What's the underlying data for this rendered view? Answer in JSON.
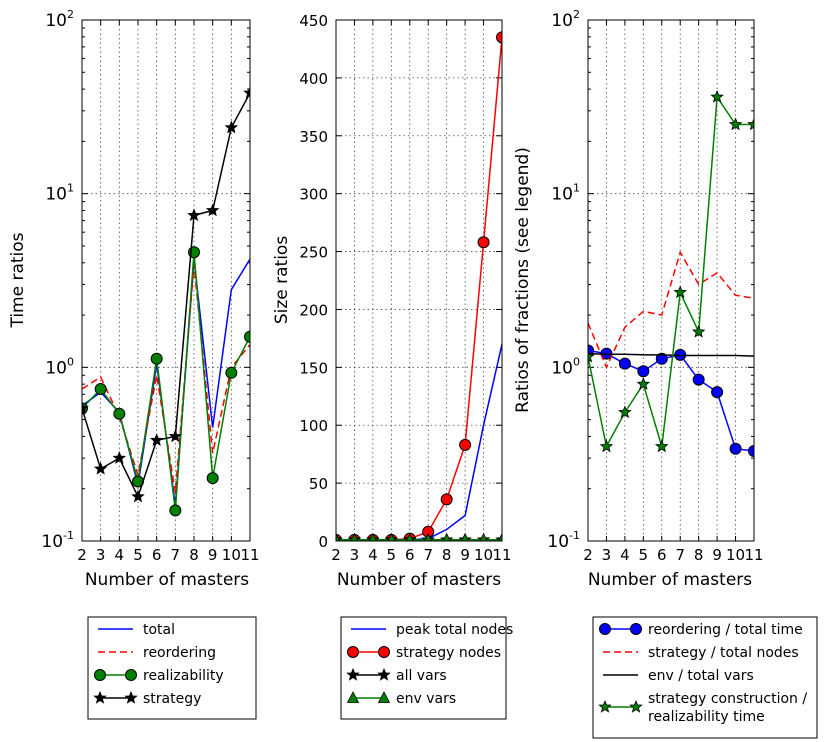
{
  "chart_data": [
    {
      "type": "line",
      "yscale": "log",
      "xlabel": "Number of masters",
      "ylabel": "Time ratios",
      "x": [
        2,
        3,
        4,
        5,
        6,
        7,
        8,
        9,
        10,
        11
      ],
      "xticks": [
        "2",
        "3",
        "4",
        "5",
        "6",
        "7",
        "8",
        "9",
        "10",
        "11"
      ],
      "ylim": [
        0.1,
        100
      ],
      "yticks": [
        {
          "value": 0.1,
          "base": "10",
          "exp": "-1"
        },
        {
          "value": 1,
          "base": "10",
          "exp": "0"
        },
        {
          "value": 10,
          "base": "10",
          "exp": "1"
        },
        {
          "value": 100,
          "base": "10",
          "exp": "2"
        }
      ],
      "series": [
        {
          "name": "total",
          "color": "#0000ff",
          "dash": "",
          "marker": "none",
          "values": [
            0.6,
            0.72,
            0.55,
            0.21,
            1.05,
            0.16,
            4.2,
            0.45,
            2.8,
            4.2
          ]
        },
        {
          "name": "reordering",
          "color": "#ff0000",
          "dash": "7 4",
          "marker": "none",
          "values": [
            0.75,
            0.88,
            0.52,
            0.24,
            0.9,
            0.19,
            3.9,
            0.32,
            1.0,
            1.35
          ]
        },
        {
          "name": "realizability",
          "color": "#008000",
          "dash": "",
          "marker": "circle",
          "markerColor": "#008000",
          "values": [
            0.58,
            0.75,
            0.54,
            0.22,
            1.12,
            0.15,
            4.6,
            0.23,
            0.93,
            1.5
          ]
        },
        {
          "name": "strategy",
          "color": "#000000",
          "dash": "",
          "marker": "star",
          "markerColor": "#000000",
          "values": [
            0.58,
            0.26,
            0.3,
            0.18,
            0.38,
            0.4,
            7.5,
            8.0,
            24,
            38
          ]
        }
      ],
      "legend": [
        "total",
        "reordering",
        "realizability",
        "strategy"
      ]
    },
    {
      "type": "line",
      "yscale": "linear",
      "xlabel": "Number of masters",
      "ylabel": "Size ratios",
      "x": [
        2,
        3,
        4,
        5,
        6,
        7,
        8,
        9,
        10,
        11
      ],
      "xticks": [
        "2",
        "3",
        "4",
        "5",
        "6",
        "7",
        "8",
        "9",
        "10",
        "11"
      ],
      "ylim": [
        0,
        450
      ],
      "yticks": [
        {
          "value": 0,
          "label": "0"
        },
        {
          "value": 50,
          "label": "50"
        },
        {
          "value": 100,
          "label": "100"
        },
        {
          "value": 150,
          "label": "150"
        },
        {
          "value": 200,
          "label": "200"
        },
        {
          "value": 250,
          "label": "250"
        },
        {
          "value": 300,
          "label": "300"
        },
        {
          "value": 350,
          "label": "350"
        },
        {
          "value": 400,
          "label": "400"
        },
        {
          "value": 450,
          "label": "450"
        }
      ],
      "series": [
        {
          "name": "peak total nodes",
          "color": "#0000ff",
          "dash": "",
          "marker": "none",
          "values": [
            1,
            1,
            1,
            1,
            1,
            2,
            10,
            22,
            100,
            170
          ]
        },
        {
          "name": "strategy nodes",
          "color": "#ff0000",
          "dash": "",
          "marker": "circle",
          "markerColor": "#ff0000",
          "values": [
            1,
            1,
            1,
            1,
            2,
            8,
            36,
            83,
            258,
            435
          ]
        },
        {
          "name": "all vars",
          "color": "#000000",
          "dash": "",
          "marker": "star",
          "markerColor": "#000000",
          "values": [
            1,
            1,
            1,
            1,
            1,
            1,
            1,
            1,
            1,
            1
          ]
        },
        {
          "name": "env vars",
          "color": "#008000",
          "dash": "",
          "marker": "triangle",
          "markerColor": "#008000",
          "values": [
            1,
            1,
            1,
            1,
            1,
            1,
            1,
            1,
            1,
            1
          ]
        }
      ],
      "legend": [
        "peak total nodes",
        "strategy nodes",
        "all vars",
        "env vars"
      ]
    },
    {
      "type": "line",
      "yscale": "log",
      "xlabel": "Number of masters",
      "ylabel": "Ratios of fractions (see legend)",
      "x": [
        2,
        3,
        4,
        5,
        6,
        7,
        8,
        9,
        10,
        11
      ],
      "xticks": [
        "2",
        "3",
        "4",
        "5",
        "6",
        "7",
        "8",
        "9",
        "10",
        "11"
      ],
      "ylim": [
        0.1,
        100
      ],
      "yticks": [
        {
          "value": 0.1,
          "base": "10",
          "exp": "-1"
        },
        {
          "value": 1,
          "base": "10",
          "exp": "0"
        },
        {
          "value": 10,
          "base": "10",
          "exp": "1"
        },
        {
          "value": 100,
          "base": "10",
          "exp": "2"
        }
      ],
      "series": [
        {
          "name": "reordering / total time",
          "color": "#0000ff",
          "dash": "",
          "marker": "circle",
          "markerColor": "#0000ff",
          "values": [
            1.25,
            1.2,
            1.05,
            0.95,
            1.12,
            1.18,
            0.85,
            0.72,
            0.34,
            0.33
          ]
        },
        {
          "name": "strategy / total nodes",
          "color": "#ff0000",
          "dash": "7 4",
          "marker": "none",
          "values": [
            1.8,
            1.0,
            1.7,
            2.1,
            2.0,
            4.6,
            3.0,
            3.5,
            2.6,
            2.5
          ]
        },
        {
          "name": "env / total vars",
          "color": "#000000",
          "dash": "",
          "marker": "none",
          "values": [
            1.2,
            1.19,
            1.19,
            1.18,
            1.18,
            1.17,
            1.17,
            1.17,
            1.17,
            1.16
          ]
        },
        {
          "name": "strategy construction / realizability time",
          "color": "#008000",
          "dash": "",
          "marker": "star",
          "markerColor": "#008000",
          "values": [
            1.15,
            0.35,
            0.55,
            0.8,
            0.35,
            2.7,
            1.6,
            36,
            25,
            25
          ]
        }
      ],
      "legend": [
        "reordering / total time",
        "strategy / total nodes",
        "env / total vars",
        "strategy construction / realizability time"
      ]
    }
  ],
  "legend_lines": {
    "l3": [
      [
        "reordering / total time"
      ],
      [
        "strategy / total nodes"
      ],
      [
        "env / total vars"
      ],
      [
        "strategy construction /",
        "realizability time"
      ]
    ]
  }
}
